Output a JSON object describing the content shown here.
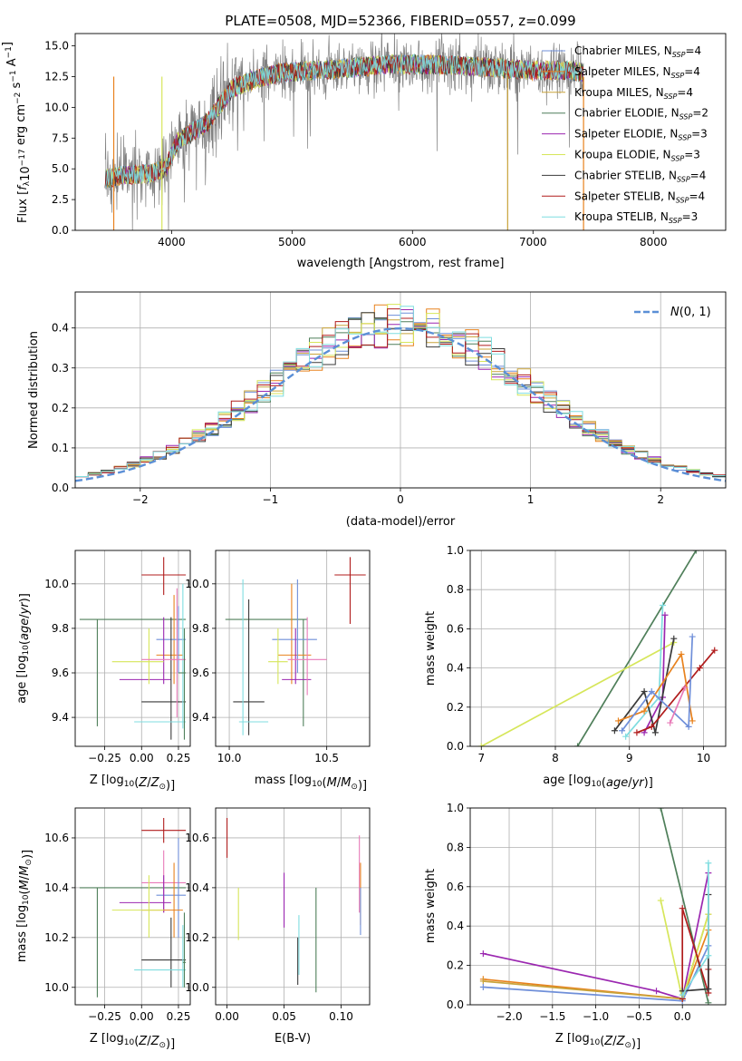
{
  "figure_title": "PLATE=0508, MJD=52366, FIBERID=0557, z=0.099",
  "colors": {
    "Chabrier MILES": "#6f8fd9",
    "Salpeter MILES": "#e8821e",
    "Kroupa MILES": "#c9a33a",
    "Chabrier ELODIE": "#4f7f5a",
    "Salpeter ELODIE": "#9b27b0",
    "Kroupa ELODIE": "#d6e65a",
    "Chabrier STELIB": "#3a3a3a",
    "Salpeter STELIB": "#b01c1c",
    "Kroupa STELIB": "#7fdde0",
    "data": "#808080",
    "gaussian": "#5b8fd6",
    "pink": "#e87ab8"
  },
  "chart_data": [
    {
      "id": "spectrum",
      "type": "line",
      "title": "PLATE=0508, MJD=52366, FIBERID=0557, z=0.099",
      "xlabel": "wavelength [Angstrom, rest frame]",
      "ylabel": "Flux [f_λ 10^-17 erg cm^-2 s^-1 A^-1]",
      "ylabel_parts": {
        "main": "Flux [",
        "f": "f",
        "lam": "λ",
        "ten": "10",
        "exp1": "−17",
        "erg": " erg cm",
        "exp2": "−2",
        "s": " s",
        "exp3": "−1",
        "A": " A",
        "exp4": "−1",
        "close": "]"
      },
      "xlim": [
        3200,
        8600
      ],
      "ylim": [
        0,
        16
      ],
      "xticks": [
        4000,
        5000,
        6000,
        7000,
        8000
      ],
      "xtick_labels": [
        "4000",
        "5000",
        "6000",
        "7000",
        "8000"
      ],
      "yticks": [
        0,
        2.5,
        5,
        7.5,
        10,
        12.5,
        15
      ],
      "ytick_labels": [
        "0.0",
        "2.5",
        "5.0",
        "7.5",
        "10.0",
        "12.5",
        "15.0"
      ],
      "continuum_x": [
        3450,
        3600,
        3800,
        3950,
        4050,
        4300,
        4500,
        4700,
        4900,
        5200,
        5500,
        5800,
        6100,
        6400,
        6700,
        7000,
        7300,
        7420
      ],
      "continuum_y": [
        4.2,
        4.5,
        4.6,
        5.0,
        7.2,
        8.8,
        11.5,
        12.3,
        12.8,
        13.0,
        13.2,
        13.5,
        13.5,
        13.4,
        13.2,
        13.0,
        13.0,
        12.8
      ],
      "legend": [
        {
          "pre": "Chabrier MILES, N",
          "sub": "SSP",
          "post": "=4"
        },
        {
          "pre": "Salpeter MILES, N",
          "sub": "SSP",
          "post": "=4"
        },
        {
          "pre": "Kroupa MILES, N",
          "sub": "SSP",
          "post": "=4"
        },
        {
          "pre": "Chabrier ELODIE, N",
          "sub": "SSP",
          "post": "=2"
        },
        {
          "pre": "Salpeter ELODIE, N",
          "sub": "SSP",
          "post": "=3"
        },
        {
          "pre": "Kroupa ELODIE, N",
          "sub": "SSP",
          "post": "=3"
        },
        {
          "pre": "Chabrier STELIB, N",
          "sub": "SSP",
          "post": "=4"
        },
        {
          "pre": "Salpeter STELIB, N",
          "sub": "SSP",
          "post": "=4"
        },
        {
          "pre": "Kroupa STELIB, N",
          "sub": "SSP",
          "post": "=3"
        }
      ],
      "legend_placement": "upper-right"
    },
    {
      "id": "residuals",
      "type": "histogram",
      "xlabel": "(data-model)/error",
      "ylabel": "Normed distribution",
      "xlim": [
        -2.5,
        2.5
      ],
      "ylim": [
        0,
        0.49
      ],
      "xticks": [
        -2,
        -1,
        0,
        1,
        2
      ],
      "xtick_labels": [
        "−2",
        "−1",
        "0",
        "1",
        "2"
      ],
      "yticks": [
        0,
        0.1,
        0.2,
        0.3,
        0.4
      ],
      "ytick_labels": [
        "0.0",
        "0.1",
        "0.2",
        "0.3",
        "0.4"
      ],
      "bin_width": 0.1,
      "gaussian_label": "N(0,1)",
      "legend_placement": "upper-right",
      "grid": true
    },
    {
      "id": "age-vs-Z",
      "type": "errorbar",
      "xlabel": "Z [log10(Z/Z⊙)]",
      "ylabel": "age  [log10(age/yr)]",
      "xlim": [
        -0.45,
        0.33
      ],
      "ylim": [
        9.27,
        10.15
      ],
      "xticks": [
        -0.25,
        0,
        0.25
      ],
      "xtick_labels": [
        "−0.25",
        "0.00",
        "0.25"
      ],
      "yticks": [
        9.4,
        9.6,
        9.8,
        10.0
      ],
      "ytick_labels": [
        "9.4",
        "9.6",
        "9.8",
        "10.0"
      ],
      "points": [
        {
          "s": "Salpeter STELIB",
          "x": 0.15,
          "xl": 0.0,
          "xh": 0.3,
          "y": 10.04,
          "yl": 9.95,
          "yh": 10.12
        },
        {
          "s": "Chabrier ELODIE",
          "x": -0.3,
          "xl": -0.42,
          "xh": 0.3,
          "y": 9.84,
          "yl": 9.36,
          "yh": 9.84
        },
        {
          "s": "Salpeter MILES",
          "x": 0.22,
          "xl": 0.1,
          "xh": 0.28,
          "y": 9.68,
          "yl": 9.55,
          "yh": 9.95
        },
        {
          "s": "Chabrier MILES",
          "x": 0.25,
          "xl": 0.1,
          "xh": 0.3,
          "y": 9.75,
          "yl": 9.6,
          "yh": 9.9
        },
        {
          "s": "Salpeter ELODIE",
          "x": 0.15,
          "xl": -0.15,
          "xh": 0.2,
          "y": 9.57,
          "yl": 9.55,
          "yh": 9.85
        },
        {
          "s": "Kroupa ELODIE",
          "x": 0.05,
          "xl": -0.2,
          "xh": 0.15,
          "y": 9.65,
          "yl": 9.55,
          "yh": 9.8
        },
        {
          "s": "Chabrier STELIB",
          "x": 0.2,
          "xl": 0.0,
          "xh": 0.3,
          "y": 9.47,
          "yl": 9.3,
          "yh": 9.85
        },
        {
          "s": "Kroupa STELIB",
          "x": 0.28,
          "xl": -0.05,
          "xh": 0.3,
          "y": 9.38,
          "yl": 9.35,
          "yh": 10.0
        },
        {
          "s": "pink",
          "x": 0.24,
          "xl": 0.0,
          "xh": 0.3,
          "y": 9.66,
          "yl": 9.4,
          "yh": 9.98
        },
        {
          "s": "Chabrier ELODIE",
          "x": 0.29,
          "xl": 0.25,
          "xh": 0.3,
          "y": 9.6,
          "yl": 9.3,
          "yh": 9.8
        }
      ]
    },
    {
      "id": "age-vs-mass",
      "type": "errorbar",
      "xlabel": "mass [log10(M/M⊙)]",
      "ylabel": "",
      "xlim": [
        9.93,
        10.72
      ],
      "ylim": [
        9.27,
        10.15
      ],
      "xticks": [
        10.0,
        10.5
      ],
      "xtick_labels": [
        "10.0",
        "10.5"
      ],
      "yticks": [
        9.4,
        9.6,
        9.8,
        10.0
      ],
      "ytick_labels": [
        "9.4",
        "9.6",
        "9.8",
        "10.0"
      ],
      "points": [
        {
          "s": "Salpeter STELIB",
          "x": 10.62,
          "xl": 10.54,
          "xh": 10.7,
          "y": 10.04,
          "yl": 9.82,
          "yh": 10.12
        },
        {
          "s": "Chabrier ELODIE",
          "x": 10.38,
          "xl": 9.98,
          "xh": 10.4,
          "y": 9.84,
          "yl": 9.36,
          "yh": 9.84
        },
        {
          "s": "Salpeter MILES",
          "x": 10.32,
          "xl": 10.25,
          "xh": 10.42,
          "y": 9.68,
          "yl": 9.55,
          "yh": 10.0
        },
        {
          "s": "Chabrier MILES",
          "x": 10.35,
          "xl": 10.22,
          "xh": 10.45,
          "y": 9.75,
          "yl": 9.6,
          "yh": 10.02
        },
        {
          "s": "Salpeter ELODIE",
          "x": 10.34,
          "xl": 10.27,
          "xh": 10.42,
          "y": 9.57,
          "yl": 9.55,
          "yh": 9.8
        },
        {
          "s": "Kroupa ELODIE",
          "x": 10.25,
          "xl": 10.2,
          "xh": 10.3,
          "y": 9.65,
          "yl": 9.55,
          "yh": 9.8
        },
        {
          "s": "Chabrier STELIB",
          "x": 10.1,
          "xl": 10.02,
          "xh": 10.18,
          "y": 9.47,
          "yl": 9.32,
          "yh": 9.93
        },
        {
          "s": "Kroupa STELIB",
          "x": 10.07,
          "xl": 10.05,
          "xh": 10.2,
          "y": 9.38,
          "yl": 9.32,
          "yh": 10.02
        },
        {
          "s": "pink",
          "x": 10.4,
          "xl": 10.3,
          "xh": 10.5,
          "y": 9.66,
          "yl": 9.5,
          "yh": 9.85
        }
      ]
    },
    {
      "id": "massweight-vs-age",
      "type": "line",
      "xlabel": "age  [log10(age/yr)]",
      "ylabel": "mass weight",
      "xlim": [
        6.85,
        10.3
      ],
      "ylim": [
        0,
        1.0
      ],
      "xticks": [
        7,
        8,
        9,
        10
      ],
      "xtick_labels": [
        "7",
        "8",
        "9",
        "10"
      ],
      "yticks": [
        0,
        0.2,
        0.4,
        0.6,
        0.8,
        1.0
      ],
      "ytick_labels": [
        "0.0",
        "0.2",
        "0.4",
        "0.6",
        "0.8",
        "1.0"
      ],
      "series": [
        {
          "s": "Chabrier ELODIE",
          "x": [
            8.3,
            9.9
          ],
          "y": [
            0.0,
            1.0
          ]
        },
        {
          "s": "Kroupa ELODIE",
          "x": [
            7.0,
            9.6
          ],
          "y": [
            0.0,
            0.53
          ]
        },
        {
          "s": "Kroupa STELIB",
          "x": [
            8.95,
            9.4,
            9.45
          ],
          "y": [
            0.05,
            0.25,
            0.72
          ]
        },
        {
          "s": "Salpeter ELODIE",
          "x": [
            9.2,
            9.45,
            9.48
          ],
          "y": [
            0.07,
            0.25,
            0.67
          ]
        },
        {
          "s": "Chabrier STELIB",
          "x": [
            8.8,
            9.2,
            9.35,
            9.6
          ],
          "y": [
            0.08,
            0.28,
            0.07,
            0.55
          ]
        },
        {
          "s": "Salpeter STELIB",
          "x": [
            9.1,
            9.3,
            9.95,
            10.15
          ],
          "y": [
            0.07,
            0.1,
            0.4,
            0.49
          ]
        },
        {
          "s": "Salpeter MILES",
          "x": [
            8.85,
            9.2,
            9.7,
            9.85
          ],
          "y": [
            0.13,
            0.18,
            0.47,
            0.13
          ]
        },
        {
          "s": "Chabrier MILES",
          "x": [
            8.9,
            9.3,
            9.8,
            9.85
          ],
          "y": [
            0.08,
            0.28,
            0.1,
            0.56
          ]
        },
        {
          "s": "pink",
          "x": [
            9.55,
            9.75
          ],
          "y": [
            0.12,
            0.3
          ]
        }
      ]
    },
    {
      "id": "mass-vs-Z",
      "type": "errorbar",
      "xlabel": "Z [log10(Z/Z⊙)]",
      "ylabel": "mass [log10(M/M⊙)]",
      "xlim": [
        -0.45,
        0.33
      ],
      "ylim": [
        9.93,
        10.72
      ],
      "xticks": [
        -0.25,
        0,
        0.25
      ],
      "xtick_labels": [
        "−0.25",
        "0.00",
        "0.25"
      ],
      "yticks": [
        10.0,
        10.2,
        10.4,
        10.6
      ],
      "ytick_labels": [
        "10.0",
        "10.2",
        "10.4",
        "10.6"
      ],
      "points": [
        {
          "s": "Salpeter STELIB",
          "x": 0.15,
          "xl": 0.0,
          "xh": 0.3,
          "y": 10.63,
          "yl": 10.58,
          "yh": 10.68
        },
        {
          "s": "Chabrier ELODIE",
          "x": -0.3,
          "xl": -0.42,
          "xh": 0.3,
          "y": 10.4,
          "yl": 9.96,
          "yh": 10.4
        },
        {
          "s": "pink",
          "x": 0.15,
          "xl": 0.0,
          "xh": 0.3,
          "y": 10.42,
          "yl": 10.3,
          "yh": 10.55
        },
        {
          "s": "Chabrier MILES",
          "x": 0.25,
          "xl": 0.1,
          "xh": 0.3,
          "y": 10.37,
          "yl": 10.2,
          "yh": 10.6
        },
        {
          "s": "Salpeter ELODIE",
          "x": 0.15,
          "xl": -0.15,
          "xh": 0.2,
          "y": 10.34,
          "yl": 10.3,
          "yh": 10.45
        },
        {
          "s": "Salpeter MILES",
          "x": 0.22,
          "xl": 0.0,
          "xh": 0.28,
          "y": 10.31,
          "yl": 10.2,
          "yh": 10.5
        },
        {
          "s": "Kroupa ELODIE",
          "x": 0.05,
          "xl": -0.2,
          "xh": 0.15,
          "y": 10.31,
          "yl": 10.2,
          "yh": 10.45
        },
        {
          "s": "Chabrier STELIB",
          "x": 0.2,
          "xl": 0.0,
          "xh": 0.3,
          "y": 10.11,
          "yl": 10.0,
          "yh": 10.28
        },
        {
          "s": "Kroupa STELIB",
          "x": 0.28,
          "xl": -0.05,
          "xh": 0.3,
          "y": 10.07,
          "yl": 10.0,
          "yh": 10.25
        },
        {
          "s": "Chabrier ELODIE",
          "x": 0.29,
          "xl": 0.28,
          "xh": 0.3,
          "y": 10.1,
          "yl": 10.0,
          "yh": 10.3
        }
      ]
    },
    {
      "id": "mass-vs-ebv",
      "type": "errorbar",
      "xlabel": "E(B-V)",
      "ylabel": "",
      "xlim": [
        -0.01,
        0.125
      ],
      "ylim": [
        9.93,
        10.72
      ],
      "xticks": [
        0.0,
        0.05,
        0.1
      ],
      "xtick_labels": [
        "0.00",
        "0.05",
        "0.10"
      ],
      "yticks": [
        10.0,
        10.2,
        10.4,
        10.6
      ],
      "ytick_labels": [
        "10.0",
        "10.2",
        "10.4",
        "10.6"
      ],
      "points": [
        {
          "s": "Salpeter STELIB",
          "x": 0.0,
          "y": 10.6,
          "yl": 10.52,
          "yh": 10.68
        },
        {
          "s": "Kroupa ELODIE",
          "x": 0.01,
          "y": 10.29,
          "yl": 10.19,
          "yh": 10.4
        },
        {
          "s": "Salpeter ELODIE",
          "x": 0.05,
          "y": 10.35,
          "yl": 10.24,
          "yh": 10.46
        },
        {
          "s": "Chabrier STELIB",
          "x": 0.062,
          "y": 10.1,
          "yl": 10.01,
          "yh": 10.2
        },
        {
          "s": "Kroupa STELIB",
          "x": 0.063,
          "y": 10.2,
          "yl": 10.05,
          "yh": 10.29
        },
        {
          "s": "Chabrier ELODIE",
          "x": 0.078,
          "y": 10.2,
          "yl": 9.98,
          "yh": 10.4
        },
        {
          "s": "pink",
          "x": 0.116,
          "y": 10.5,
          "yl": 10.3,
          "yh": 10.61
        },
        {
          "s": "Salpeter MILES",
          "x": 0.117,
          "y": 10.4,
          "yl": 10.25,
          "yh": 10.5
        },
        {
          "s": "Chabrier MILES",
          "x": 0.117,
          "y": 10.3,
          "yl": 10.21,
          "yh": 10.4
        }
      ]
    },
    {
      "id": "massweight-vs-Z",
      "type": "line",
      "xlabel": "Z [log10(Z/Z⊙)]",
      "ylabel": "mass weight",
      "xlim": [
        -2.45,
        0.5
      ],
      "ylim": [
        0,
        1.0
      ],
      "xticks": [
        -2.0,
        -1.5,
        -1.0,
        -0.5,
        0.0
      ],
      "xtick_labels": [
        "−2.0",
        "−1.5",
        "−1.0",
        "−0.5",
        "0.0"
      ],
      "yticks": [
        0,
        0.2,
        0.4,
        0.6,
        0.8,
        1.0
      ],
      "ytick_labels": [
        "0.0",
        "0.2",
        "0.4",
        "0.6",
        "0.8",
        "1.0"
      ],
      "series": [
        {
          "s": "Salpeter ELODIE",
          "x": [
            -2.3,
            -0.3,
            0.0,
            0.3
          ],
          "y": [
            0.26,
            0.07,
            0.03,
            0.67
          ]
        },
        {
          "s": "Salpeter MILES",
          "x": [
            -2.3,
            0.0,
            0.3
          ],
          "y": [
            0.13,
            0.03,
            0.38
          ]
        },
        {
          "s": "Kroupa MILES",
          "x": [
            -2.3,
            0.0,
            0.3
          ],
          "y": [
            0.12,
            0.03,
            0.46
          ]
        },
        {
          "s": "Chabrier MILES",
          "x": [
            -2.3,
            0.0,
            0.3
          ],
          "y": [
            0.09,
            0.02,
            0.3
          ]
        },
        {
          "s": "Chabrier ELODIE",
          "x": [
            -0.25,
            0.3
          ],
          "y": [
            1.0,
            0.01
          ]
        },
        {
          "s": "Kroupa ELODIE",
          "x": [
            -0.25,
            0.0,
            0.3
          ],
          "y": [
            0.53,
            0.03,
            0.46
          ]
        },
        {
          "s": "Salpeter STELIB",
          "x": [
            0.0,
            0.0,
            0.3,
            0.3
          ],
          "y": [
            0.03,
            0.49,
            0.06,
            0.18
          ]
        },
        {
          "s": "Chabrier STELIB",
          "x": [
            0.0,
            0.3,
            0.3
          ],
          "y": [
            0.07,
            0.08,
            0.56
          ]
        },
        {
          "s": "Kroupa STELIB",
          "x": [
            0.0,
            0.3,
            0.3
          ],
          "y": [
            0.05,
            0.25,
            0.72
          ]
        }
      ]
    }
  ]
}
